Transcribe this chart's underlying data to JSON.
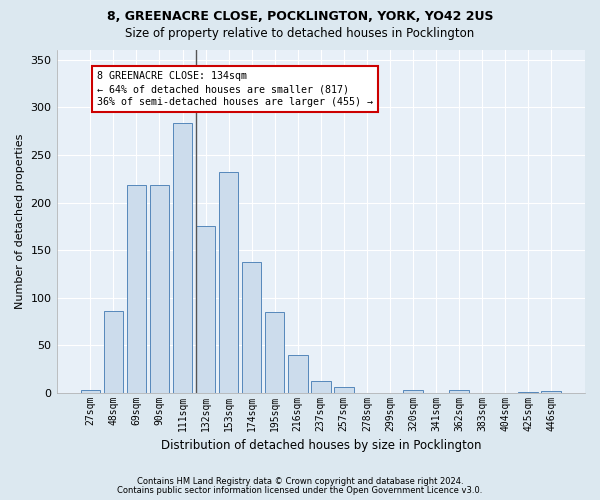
{
  "title1": "8, GREENACRE CLOSE, POCKLINGTON, YORK, YO42 2US",
  "title2": "Size of property relative to detached houses in Pocklington",
  "xlabel": "Distribution of detached houses by size in Pocklington",
  "ylabel": "Number of detached properties",
  "footer1": "Contains HM Land Registry data © Crown copyright and database right 2024.",
  "footer2": "Contains public sector information licensed under the Open Government Licence v3.0.",
  "bar_labels": [
    "27sqm",
    "48sqm",
    "69sqm",
    "90sqm",
    "111sqm",
    "132sqm",
    "153sqm",
    "174sqm",
    "195sqm",
    "216sqm",
    "237sqm",
    "257sqm",
    "278sqm",
    "299sqm",
    "320sqm",
    "341sqm",
    "362sqm",
    "383sqm",
    "404sqm",
    "425sqm",
    "446sqm"
  ],
  "bar_values": [
    3,
    86,
    218,
    218,
    283,
    175,
    232,
    138,
    85,
    40,
    13,
    6,
    0,
    0,
    3,
    0,
    3,
    0,
    0,
    1,
    2
  ],
  "bar_color": "#ccdcec",
  "bar_edge_color": "#5588bb",
  "annotation_text_line1": "8 GREENACRE CLOSE: 134sqm",
  "annotation_text_line2": "← 64% of detached houses are smaller (817)",
  "annotation_text_line3": "36% of semi-detached houses are larger (455) →",
  "annotation_box_color": "#ffffff",
  "annotation_box_edge": "#cc0000",
  "vline_color": "#555555",
  "vline_x_bar_index": 5,
  "background_color": "#dce8f0",
  "plot_bg_color": "#e8f0f8",
  "grid_color": "#ffffff",
  "ylim": [
    0,
    360
  ],
  "yticks": [
    0,
    50,
    100,
    150,
    200,
    250,
    300,
    350
  ]
}
